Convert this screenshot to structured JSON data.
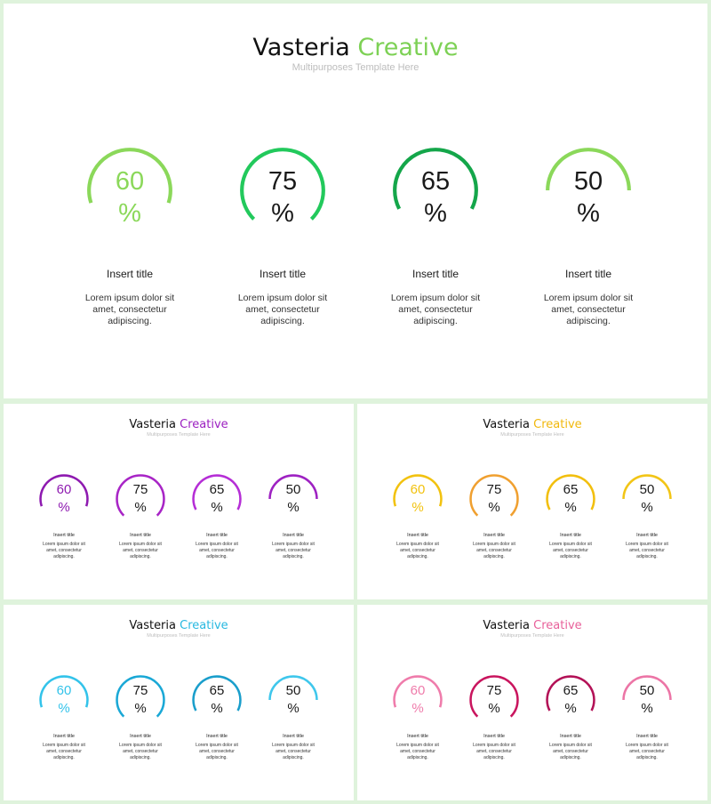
{
  "brand": {
    "word1": "Vasteria",
    "word2": "Creative",
    "subtitle": "Multipurposes Template Here"
  },
  "item_title": "Insert title",
  "item_desc_lines": [
    "Lorem ipsum dolor sit",
    "amet, consectetur",
    "adipiscing."
  ],
  "percent_sign": "%",
  "stats": [
    {
      "value": "60",
      "fraction": 0.6
    },
    {
      "value": "75",
      "fraction": 0.75
    },
    {
      "value": "65",
      "fraction": 0.65
    },
    {
      "value": "50",
      "fraction": 0.5
    }
  ],
  "slides": [
    {
      "theme": "green",
      "accent": "#7dd155",
      "ring_colors": [
        "#8bd85a",
        "#22c95c",
        "#14a64a",
        "#8bd85a"
      ]
    },
    {
      "theme": "purple",
      "accent": "#9b1fc0",
      "ring_colors": [
        "#8e1ab0",
        "#a825c6",
        "#b52ed6",
        "#9e22c2"
      ]
    },
    {
      "theme": "yellow",
      "accent": "#f1b80c",
      "ring_colors": [
        "#f2c20f",
        "#f0a030",
        "#f2bf0e",
        "#f2c516"
      ]
    },
    {
      "theme": "cyan",
      "accent": "#27b8e0",
      "ring_colors": [
        "#33c3ea",
        "#1aa8d6",
        "#1a9ecb",
        "#3fc7ec"
      ]
    },
    {
      "theme": "pink",
      "accent": "#e8609a",
      "ring_colors": [
        "#ef7cab",
        "#c9155e",
        "#b31257",
        "#ec75a6"
      ]
    }
  ]
}
